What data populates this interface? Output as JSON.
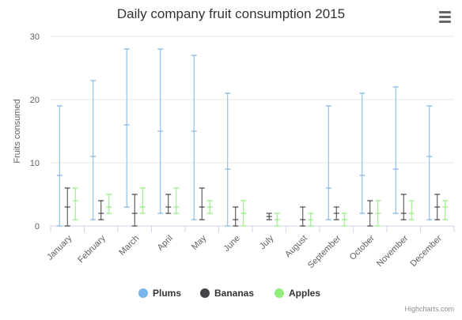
{
  "chart_data": {
    "type": "boxplot",
    "title": "Daily company fruit consumption 2015",
    "xlabel": "",
    "ylabel": "Fruits consumed",
    "ylim": [
      0,
      30
    ],
    "yticks": [
      0,
      10,
      20,
      30
    ],
    "grid": true,
    "legend_position": "bottom",
    "categories": [
      "January",
      "February",
      "March",
      "April",
      "May",
      "June",
      "July",
      "August",
      "September",
      "October",
      "November",
      "December"
    ],
    "series": [
      {
        "name": "Plums",
        "color": "#7cb5ec",
        "values": [
          {
            "low": 0,
            "q1": 0,
            "median": 8,
            "q3": 8,
            "high": 19
          },
          {
            "low": 1,
            "q1": 1,
            "median": 11,
            "q3": 11,
            "high": 23
          },
          {
            "low": 3,
            "q1": 3,
            "median": 16,
            "q3": 16,
            "high": 28
          },
          {
            "low": 2,
            "q1": 2,
            "median": 15,
            "q3": 15,
            "high": 28
          },
          {
            "low": 1,
            "q1": 1,
            "median": 15,
            "q3": 15,
            "high": 27
          },
          {
            "low": 0,
            "q1": 0,
            "median": 9,
            "q3": 9,
            "high": 21
          },
          null,
          null,
          {
            "low": 1,
            "q1": 1,
            "median": 6,
            "q3": 6,
            "high": 19
          },
          {
            "low": 2,
            "q1": 2,
            "median": 8,
            "q3": 8,
            "high": 21
          },
          {
            "low": 2,
            "q1": 2,
            "median": 9,
            "q3": 9,
            "high": 22
          },
          {
            "low": 1,
            "q1": 1,
            "median": 11,
            "q3": 11,
            "high": 19
          }
        ]
      },
      {
        "name": "Bananas",
        "color": "#434348",
        "values": [
          {
            "low": 0,
            "q1": 0,
            "median": 3,
            "q3": 3,
            "high": 6
          },
          {
            "low": 1,
            "q1": 1,
            "median": 2,
            "q3": 2,
            "high": 4
          },
          {
            "low": 0,
            "q1": 0,
            "median": 2,
            "q3": 2,
            "high": 5
          },
          {
            "low": 2,
            "q1": 2,
            "median": 3,
            "q3": 3,
            "high": 5
          },
          {
            "low": 1,
            "q1": 1,
            "median": 3,
            "q3": 3,
            "high": 6
          },
          {
            "low": 0,
            "q1": 0,
            "median": 1,
            "q3": 1,
            "high": 3
          },
          {
            "low": 1,
            "q1": 1,
            "median": 1.5,
            "q3": 1.5,
            "high": 2
          },
          {
            "low": 0,
            "q1": 0,
            "median": 1,
            "q3": 1,
            "high": 3
          },
          {
            "low": 1,
            "q1": 1,
            "median": 2,
            "q3": 2,
            "high": 3
          },
          {
            "low": 0,
            "q1": 0,
            "median": 2,
            "q3": 2,
            "high": 4
          },
          {
            "low": 1,
            "q1": 1,
            "median": 2,
            "q3": 2,
            "high": 5
          },
          {
            "low": 1,
            "q1": 1,
            "median": 3,
            "q3": 3,
            "high": 5
          }
        ]
      },
      {
        "name": "Apples",
        "color": "#90ed7d",
        "values": [
          {
            "low": 1,
            "q1": 1,
            "median": 4,
            "q3": 4,
            "high": 6
          },
          {
            "low": 2,
            "q1": 2,
            "median": 3,
            "q3": 3,
            "high": 5
          },
          {
            "low": 2,
            "q1": 2,
            "median": 3,
            "q3": 3,
            "high": 6
          },
          {
            "low": 2,
            "q1": 2,
            "median": 3,
            "q3": 3,
            "high": 6
          },
          {
            "low": 2,
            "q1": 2,
            "median": 3,
            "q3": 3,
            "high": 4
          },
          {
            "low": 0,
            "q1": 0,
            "median": 2,
            "q3": 2,
            "high": 4
          },
          {
            "low": 0,
            "q1": 0,
            "median": 1,
            "q3": 1,
            "high": 2
          },
          {
            "low": 0,
            "q1": 0,
            "median": 1,
            "q3": 1,
            "high": 2
          },
          {
            "low": 0,
            "q1": 0,
            "median": 1,
            "q3": 1,
            "high": 2
          },
          {
            "low": 0,
            "q1": 0,
            "median": 2,
            "q3": 2,
            "high": 4
          },
          {
            "low": 1,
            "q1": 1,
            "median": 2,
            "q3": 2,
            "high": 4
          },
          {
            "low": 1,
            "q1": 1,
            "median": 3,
            "q3": 3,
            "high": 4
          }
        ]
      }
    ]
  },
  "credits": "Highcharts.com",
  "menu_icon": "hamburger-menu-icon"
}
